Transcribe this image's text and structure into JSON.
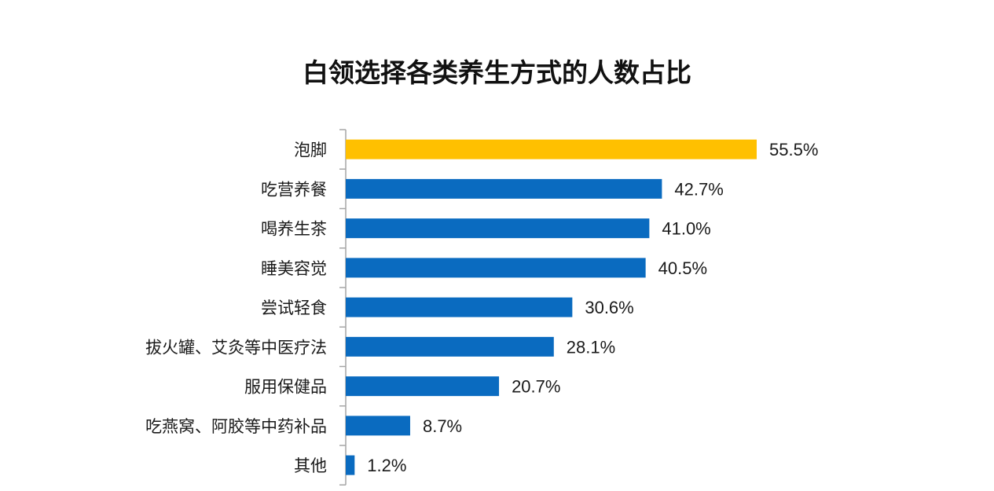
{
  "chart_data": {
    "type": "bar",
    "orientation": "horizontal",
    "title": "白领选择各类养生方式的人数占比",
    "categories": [
      "泡脚",
      "吃营养餐",
      "喝养生茶",
      "睡美容觉",
      "尝试轻食",
      "拔火罐、艾灸等中医疗法",
      "服用保健品",
      "吃燕窝、阿胶等中药补品",
      "其他"
    ],
    "values": [
      55.5,
      42.7,
      41.0,
      40.5,
      30.6,
      28.1,
      20.7,
      8.7,
      1.2
    ],
    "labels": [
      "55.5%",
      "42.7%",
      "41.0%",
      "40.5%",
      "30.6%",
      "28.1%",
      "20.7%",
      "8.7%",
      "1.2%"
    ],
    "highlight_index": 0,
    "colors": {
      "highlight": "#FFC000",
      "default": "#0A6BC0",
      "axis": "#A6A6A6",
      "text": "#1A1A1A"
    },
    "xlabel": "",
    "ylabel": "",
    "xlim": [
      0,
      55.5
    ],
    "grid": false,
    "legend": "none"
  }
}
